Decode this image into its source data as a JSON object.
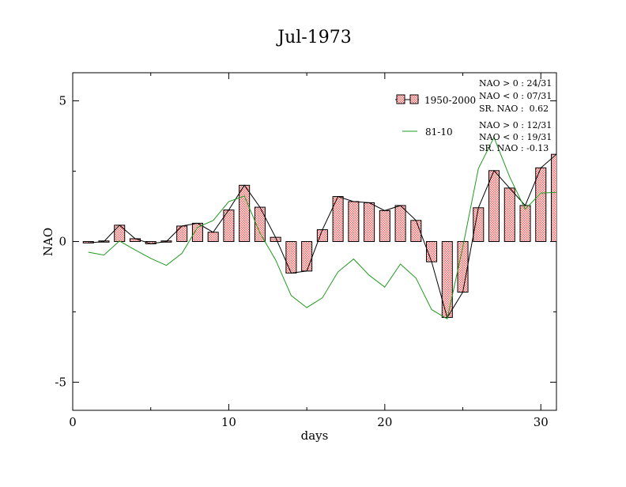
{
  "chart_data": {
    "type": "bar",
    "title": "Jul-1973",
    "xlabel": "days",
    "ylabel": "NAO",
    "xlim": [
      0,
      31
    ],
    "ylim": [
      -6,
      6
    ],
    "x_ticks": [
      0,
      10,
      20,
      30
    ],
    "x_tick_labels": [
      "0",
      "10",
      "20",
      "30"
    ],
    "y_ticks": [
      -5,
      0,
      5
    ],
    "y_tick_labels": [
      "-5",
      "0",
      "5"
    ],
    "legend_position": "top-right",
    "grid": false,
    "series": [
      {
        "name": "1950-2000",
        "kind": "bar+line",
        "color": "#ff5a5a",
        "x": [
          1,
          2,
          3,
          4,
          5,
          6,
          7,
          8,
          9,
          10,
          11,
          12,
          13,
          14,
          15,
          16,
          17,
          18,
          19,
          20,
          21,
          22,
          23,
          24,
          25,
          26,
          27,
          28,
          29,
          30,
          31
        ],
        "values": [
          -0.05,
          0.0,
          0.58,
          0.1,
          -0.08,
          0.0,
          0.55,
          0.65,
          0.33,
          1.12,
          2.0,
          1.22,
          0.15,
          -1.12,
          -1.05,
          0.42,
          1.6,
          1.42,
          1.38,
          1.1,
          1.28,
          0.75,
          -0.72,
          -2.7,
          -1.8,
          1.2,
          2.52,
          1.9,
          1.28,
          2.62,
          3.1
        ]
      },
      {
        "name": "81-10",
        "kind": "line",
        "color": "#1f9a1f",
        "x": [
          1,
          2,
          3,
          4,
          5,
          6,
          7,
          8,
          9,
          10,
          11,
          12,
          13,
          14,
          15,
          16,
          17,
          18,
          19,
          20,
          21,
          22,
          23,
          24,
          25,
          26,
          27,
          28,
          29,
          30,
          31
        ],
        "values": [
          -0.38,
          -0.48,
          0.02,
          -0.3,
          -0.6,
          -0.85,
          -0.42,
          0.5,
          0.75,
          1.42,
          1.62,
          0.3,
          -0.65,
          -1.92,
          -2.35,
          -2.0,
          -1.08,
          -0.62,
          -1.2,
          -1.62,
          -0.8,
          -1.3,
          -2.42,
          -2.75,
          -0.2,
          2.6,
          3.7,
          2.3,
          1.15,
          1.72,
          1.75
        ]
      }
    ],
    "annotations": {
      "group1": [
        "NAO > 0 : 24/31",
        "NAO < 0 : 07/31",
        "SR. NAO :  0.62"
      ],
      "group2": [
        "NAO > 0 : 12/31",
        "NAO < 0 : 19/31",
        "SR. NAO : -0.13"
      ]
    }
  }
}
